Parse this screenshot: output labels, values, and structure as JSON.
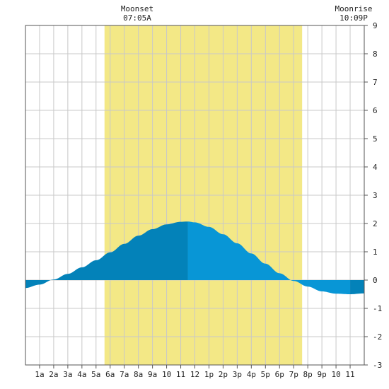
{
  "chart_data": {
    "type": "area",
    "title": "",
    "xlabel": "",
    "ylabel": "",
    "x_range_hours": [
      0,
      24
    ],
    "ylim": [
      -3,
      9
    ],
    "x_ticks": [
      {
        "hour": 1,
        "label": "1a"
      },
      {
        "hour": 2,
        "label": "2a"
      },
      {
        "hour": 3,
        "label": "3a"
      },
      {
        "hour": 4,
        "label": "4a"
      },
      {
        "hour": 5,
        "label": "5a"
      },
      {
        "hour": 6,
        "label": "6a"
      },
      {
        "hour": 7,
        "label": "7a"
      },
      {
        "hour": 8,
        "label": "8a"
      },
      {
        "hour": 9,
        "label": "9a"
      },
      {
        "hour": 10,
        "label": "10"
      },
      {
        "hour": 11,
        "label": "11"
      },
      {
        "hour": 12,
        "label": "12"
      },
      {
        "hour": 13,
        "label": "1p"
      },
      {
        "hour": 14,
        "label": "2p"
      },
      {
        "hour": 15,
        "label": "3p"
      },
      {
        "hour": 16,
        "label": "4p"
      },
      {
        "hour": 17,
        "label": "5p"
      },
      {
        "hour": 18,
        "label": "6p"
      },
      {
        "hour": 19,
        "label": "7p"
      },
      {
        "hour": 20,
        "label": "8p"
      },
      {
        "hour": 21,
        "label": "9p"
      },
      {
        "hour": 22,
        "label": "10"
      },
      {
        "hour": 23,
        "label": "11"
      }
    ],
    "y_ticks": [
      -3,
      -2,
      -1,
      0,
      1,
      2,
      3,
      4,
      5,
      6,
      7,
      8,
      9
    ],
    "grid": true,
    "daylight_hours": [
      5.6,
      19.6
    ],
    "moon_events": [
      {
        "label": "Moonset",
        "time": "07:05A",
        "hour": 7.08
      },
      {
        "label": "Moonrise",
        "time": "10:09P",
        "hour": 22.15
      }
    ],
    "tide_series": {
      "hours": [
        0,
        1,
        2,
        3,
        4,
        5,
        6,
        7,
        8,
        9,
        10,
        11,
        11.5,
        12,
        13,
        14,
        15,
        16,
        17,
        18,
        19,
        20,
        21,
        22,
        23,
        24
      ],
      "heights": [
        -0.28,
        -0.16,
        0.02,
        0.22,
        0.45,
        0.7,
        0.98,
        1.28,
        1.57,
        1.8,
        1.97,
        2.06,
        2.07,
        2.04,
        1.88,
        1.62,
        1.3,
        0.94,
        0.58,
        0.24,
        -0.03,
        -0.23,
        -0.4,
        -0.48,
        -0.5,
        -0.47
      ]
    },
    "shade_split_hours": [
      11.5,
      23
    ]
  },
  "colors": {
    "daylight": "#f3e886",
    "tide_dark": "#0382b9",
    "tide_light": "#0896d6",
    "grid": "#c8c8c8",
    "frame": "#555555"
  }
}
